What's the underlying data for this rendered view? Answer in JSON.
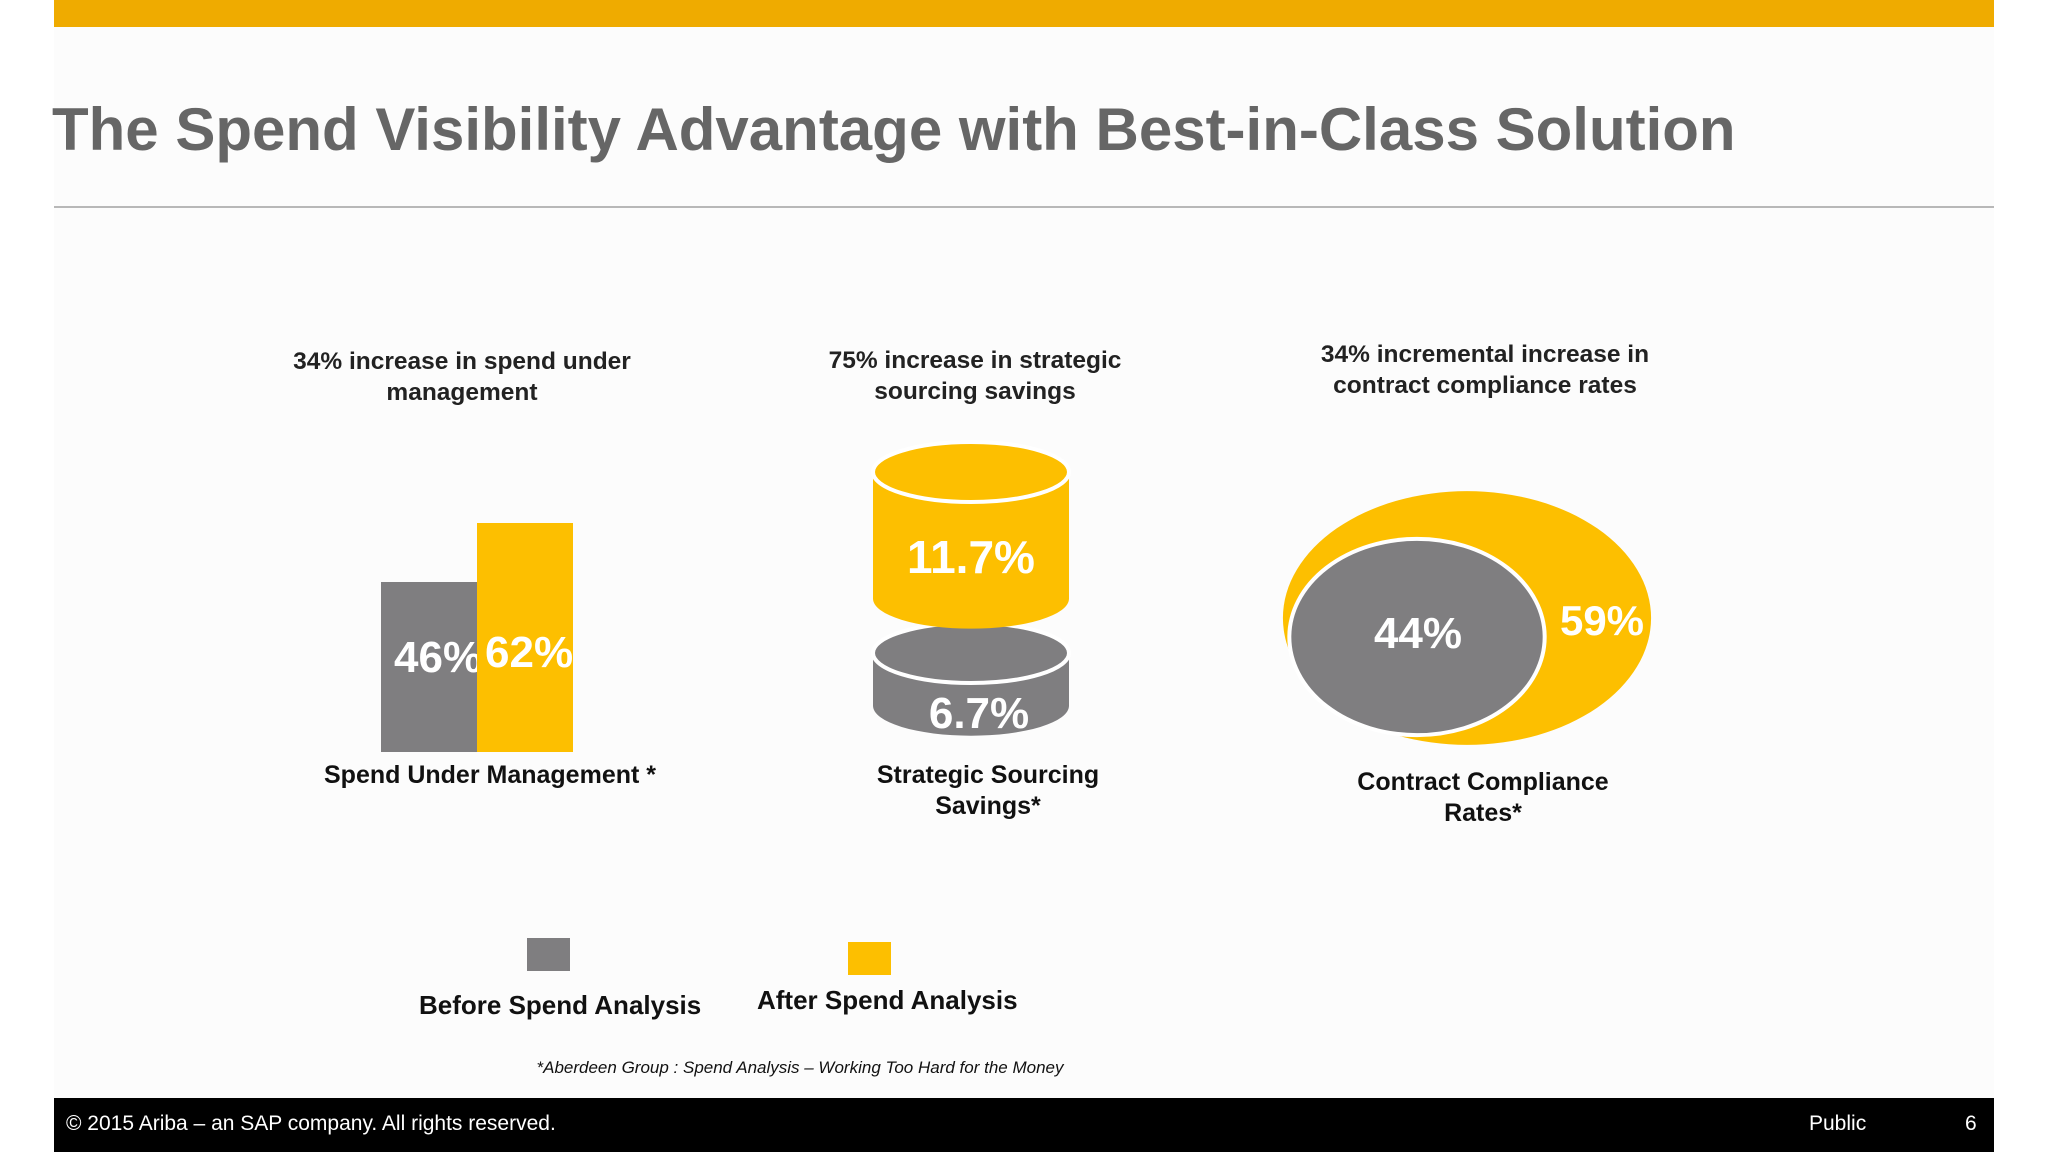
{
  "title": "The Spend Visibility Advantage with Best-in-Class Solution",
  "colors": {
    "before": "#7f7e80",
    "after": "#fdbf00",
    "accent_bar": "#efab00"
  },
  "chart_data": [
    {
      "type": "bar",
      "headline": "34% increase in spend under management",
      "caption": "Spend Under Management *",
      "categories": [
        "Before Spend Analysis",
        "After Spend Analysis"
      ],
      "values": [
        46,
        62
      ],
      "labels": [
        "46%",
        "62%"
      ]
    },
    {
      "type": "bar",
      "headline": "75% increase in strategic sourcing savings",
      "caption": "Strategic Sourcing Savings*",
      "categories": [
        "Before Spend Analysis",
        "After Spend Analysis"
      ],
      "values": [
        6.7,
        11.7
      ],
      "labels": [
        "6.7%",
        "11.7%"
      ]
    },
    {
      "type": "area",
      "headline": "34% incremental increase in contract compliance rates",
      "caption": "Contract Compliance Rates*",
      "categories": [
        "Before Spend Analysis",
        "After Spend Analysis"
      ],
      "values": [
        44,
        59
      ],
      "labels": [
        "44%",
        "59%"
      ]
    }
  ],
  "legend": {
    "before": "Before Spend Analysis",
    "after": "After Spend Analysis"
  },
  "source_note": "*Aberdeen Group : Spend Analysis – Working Too Hard for the Money",
  "footer": {
    "copyright": "©  2015 Ariba – an SAP company. All rights reserved.",
    "classification": "Public",
    "page": "6"
  }
}
